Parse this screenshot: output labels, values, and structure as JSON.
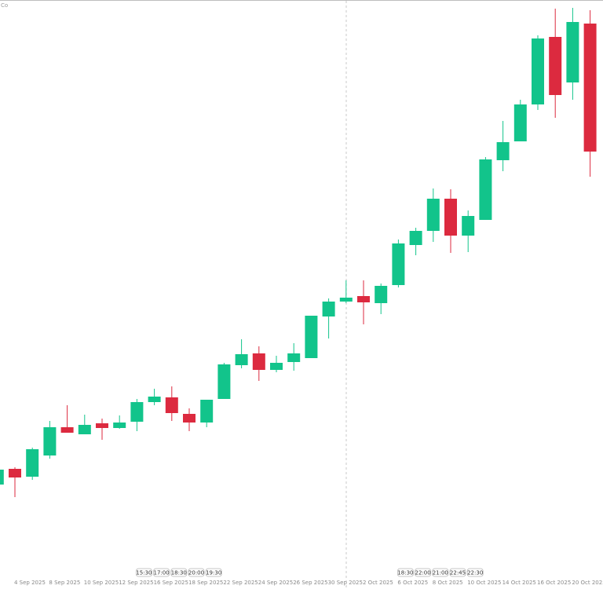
{
  "chart_data": {
    "type": "candlestick",
    "symbol_label": "Co",
    "categories": [
      null,
      "4 Sep 2025",
      null,
      "8 Sep 2025",
      null,
      "10 Sep 2025",
      null,
      "12 Sep 2025",
      null,
      "16 Sep 2025",
      null,
      "18 Sep 2025",
      null,
      "22 Sep 2025",
      null,
      "24 Sep 2025",
      null,
      "26 Sep 2025",
      null,
      "30 Sep 2025",
      null,
      "2 Oct 2025",
      null,
      "6 Oct 2025",
      null,
      "8 Oct 2025",
      null,
      "10 Oct 2025",
      null,
      "14 Oct 2025",
      null,
      "16 Oct 2025",
      null,
      "20 Oct 2025",
      null
    ],
    "open": [
      133,
      153,
      143,
      170,
      206,
      197,
      211,
      205,
      213,
      238,
      244,
      223,
      212,
      242,
      285,
      300,
      279,
      289,
      294,
      347,
      366,
      373,
      364,
      387,
      438,
      456,
      497,
      450,
      470,
      546,
      570,
      617,
      703,
      645,
      720
    ],
    "high": [
      154,
      155,
      180,
      214,
      234,
      222,
      217,
      221,
      242,
      255,
      258,
      230,
      241,
      288,
      318,
      309,
      297,
      313,
      348,
      370,
      393,
      393,
      389,
      445,
      460,
      510,
      509,
      482,
      550,
      596,
      623,
      705,
      739,
      740,
      737
    ],
    "low": [
      130,
      117,
      139,
      166,
      199,
      197,
      190,
      204,
      201,
      234,
      214,
      201,
      206,
      242,
      281,
      265,
      276,
      278,
      294,
      319,
      364,
      337,
      350,
      384,
      425,
      442,
      428,
      429,
      470,
      532,
      570,
      610,
      600,
      623,
      525
    ],
    "close": [
      152,
      142,
      178,
      206,
      199,
      209,
      205,
      212,
      238,
      245,
      224,
      212,
      241,
      286,
      299,
      279,
      288,
      300,
      348,
      366,
      371,
      365,
      386,
      440,
      456,
      497,
      450,
      475,
      547,
      569,
      617,
      701,
      629,
      722,
      557
    ],
    "up_color": "#12c48b",
    "down_color": "#dc2a3f",
    "ylim": [
      0,
      750
    ],
    "time_labels": [
      [
        "15:30",
        "17:00",
        "18:30",
        "20:00",
        "19:30"
      ],
      [
        "18:30",
        "22:00",
        "21:00",
        "22:45",
        "22:30"
      ]
    ]
  }
}
